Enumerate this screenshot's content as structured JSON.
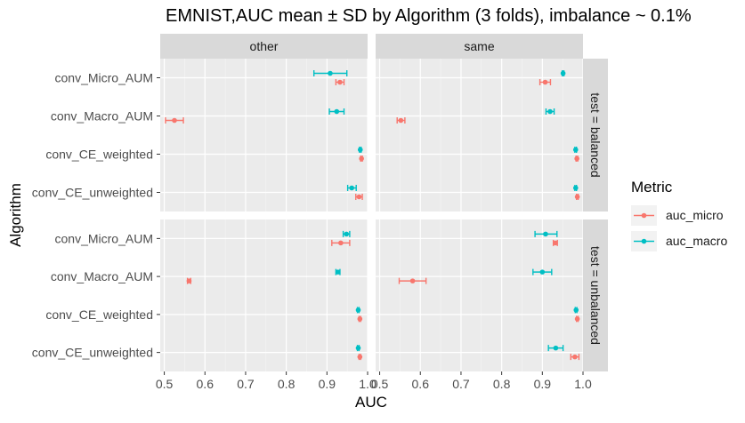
{
  "chart_data": {
    "type": "scatter",
    "title": "EMNIST,AUC mean ± SD by Algorithm (3 folds), imbalance ~ 0.1%",
    "xlabel": "AUC",
    "ylabel": "Algorithm",
    "xlim": [
      0.49,
      1.0
    ],
    "x_ticks": [
      "0.5",
      "0.6",
      "0.7",
      "0.8",
      "0.9",
      "1.0"
    ],
    "categories": [
      "conv_Micro_AUM",
      "conv_Macro_AUM",
      "conv_CE_weighted",
      "conv_CE_unweighted"
    ],
    "col_facets": [
      "other",
      "same"
    ],
    "row_facets": [
      "test = balanced",
      "test = unbalanced"
    ],
    "legend": {
      "title": "Metric",
      "position": "right",
      "entries": [
        {
          "name": "auc_micro",
          "color": "#F8766D"
        },
        {
          "name": "auc_macro",
          "color": "#00BFC4"
        }
      ]
    },
    "grid": true,
    "panels": [
      {
        "col": "other",
        "row": "test = balanced",
        "series": [
          {
            "name": "auc_micro",
            "points": [
              {
                "category": "conv_Micro_AUM",
                "mean": 0.932,
                "lo": 0.922,
                "hi": 0.942
              },
              {
                "category": "conv_Macro_AUM",
                "mean": 0.525,
                "lo": 0.503,
                "hi": 0.547
              },
              {
                "category": "conv_CE_weighted",
                "mean": 0.985,
                "lo": 0.983,
                "hi": 0.987
              },
              {
                "category": "conv_CE_unweighted",
                "mean": 0.979,
                "lo": 0.971,
                "hi": 0.987
              }
            ]
          },
          {
            "name": "auc_macro",
            "points": [
              {
                "category": "conv_Micro_AUM",
                "mean": 0.908,
                "lo": 0.868,
                "hi": 0.949
              },
              {
                "category": "conv_Macro_AUM",
                "mean": 0.924,
                "lo": 0.906,
                "hi": 0.942
              },
              {
                "category": "conv_CE_weighted",
                "mean": 0.982,
                "lo": 0.98,
                "hi": 0.984
              },
              {
                "category": "conv_CE_unweighted",
                "mean": 0.961,
                "lo": 0.951,
                "hi": 0.972
              }
            ]
          }
        ]
      },
      {
        "col": "same",
        "row": "test = balanced",
        "series": [
          {
            "name": "auc_micro",
            "points": [
              {
                "category": "conv_Micro_AUM",
                "mean": 0.907,
                "lo": 0.894,
                "hi": 0.92
              },
              {
                "category": "conv_Macro_AUM",
                "mean": 0.552,
                "lo": 0.543,
                "hi": 0.562
              },
              {
                "category": "conv_CE_weighted",
                "mean": 0.985,
                "lo": 0.983,
                "hi": 0.987
              },
              {
                "category": "conv_CE_unweighted",
                "mean": 0.986,
                "lo": 0.984,
                "hi": 0.988
              }
            ]
          },
          {
            "name": "auc_macro",
            "points": [
              {
                "category": "conv_Micro_AUM",
                "mean": 0.951,
                "lo": 0.949,
                "hi": 0.953
              },
              {
                "category": "conv_Macro_AUM",
                "mean": 0.919,
                "lo": 0.909,
                "hi": 0.929
              },
              {
                "category": "conv_CE_weighted",
                "mean": 0.982,
                "lo": 0.98,
                "hi": 0.984
              },
              {
                "category": "conv_CE_unweighted",
                "mean": 0.982,
                "lo": 0.98,
                "hi": 0.984
              }
            ]
          }
        ]
      },
      {
        "col": "other",
        "row": "test = unbalanced",
        "series": [
          {
            "name": "auc_micro",
            "points": [
              {
                "category": "conv_Micro_AUM",
                "mean": 0.934,
                "lo": 0.912,
                "hi": 0.956
              },
              {
                "category": "conv_Macro_AUM",
                "mean": 0.561,
                "lo": 0.557,
                "hi": 0.565
              },
              {
                "category": "conv_CE_weighted",
                "mean": 0.981,
                "lo": 0.979,
                "hi": 0.983
              },
              {
                "category": "conv_CE_unweighted",
                "mean": 0.981,
                "lo": 0.979,
                "hi": 0.983
              }
            ]
          },
          {
            "name": "auc_macro",
            "points": [
              {
                "category": "conv_Micro_AUM",
                "mean": 0.948,
                "lo": 0.94,
                "hi": 0.956
              },
              {
                "category": "conv_Macro_AUM",
                "mean": 0.927,
                "lo": 0.922,
                "hi": 0.932
              },
              {
                "category": "conv_CE_weighted",
                "mean": 0.977,
                "lo": 0.975,
                "hi": 0.979
              },
              {
                "category": "conv_CE_unweighted",
                "mean": 0.977,
                "lo": 0.975,
                "hi": 0.979
              }
            ]
          }
        ]
      },
      {
        "col": "same",
        "row": "test = unbalanced",
        "series": [
          {
            "name": "auc_micro",
            "points": [
              {
                "category": "conv_Micro_AUM",
                "mean": 0.932,
                "lo": 0.927,
                "hi": 0.937
              },
              {
                "category": "conv_Macro_AUM",
                "mean": 0.581,
                "lo": 0.548,
                "hi": 0.614
              },
              {
                "category": "conv_CE_weighted",
                "mean": 0.986,
                "lo": 0.984,
                "hi": 0.988
              },
              {
                "category": "conv_CE_unweighted",
                "mean": 0.98,
                "lo": 0.97,
                "hi": 0.99
              }
            ]
          },
          {
            "name": "auc_macro",
            "points": [
              {
                "category": "conv_Micro_AUM",
                "mean": 0.908,
                "lo": 0.882,
                "hi": 0.936
              },
              {
                "category": "conv_Macro_AUM",
                "mean": 0.9,
                "lo": 0.877,
                "hi": 0.923
              },
              {
                "category": "conv_CE_weighted",
                "mean": 0.983,
                "lo": 0.981,
                "hi": 0.985
              },
              {
                "category": "conv_CE_unweighted",
                "mean": 0.933,
                "lo": 0.915,
                "hi": 0.951
              }
            ]
          }
        ]
      }
    ]
  }
}
